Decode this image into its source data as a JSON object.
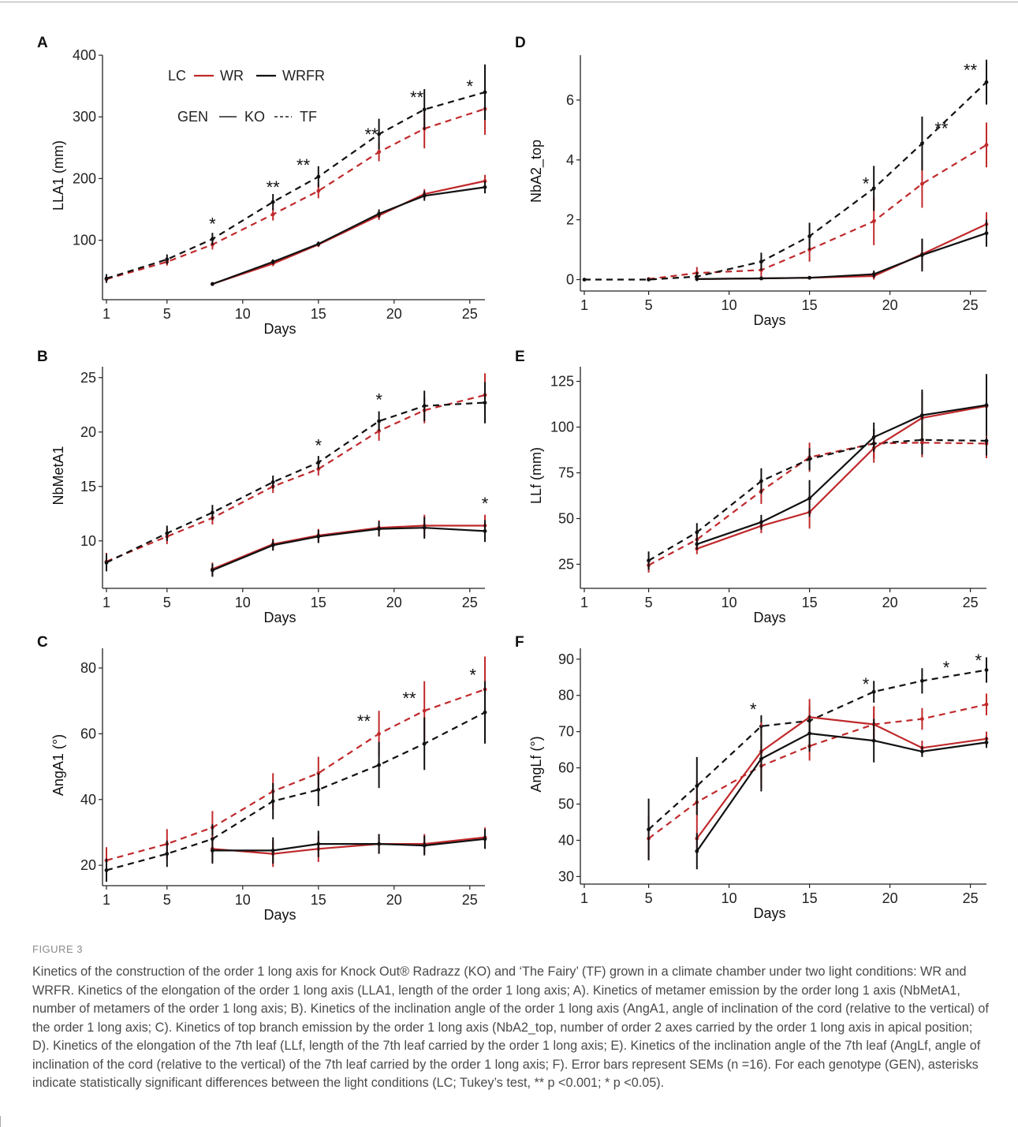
{
  "figure": {
    "label": "FIGURE 3",
    "caption": "Kinetics of the construction of the order 1 long axis for Knock Out® Radrazz (KO) and ‘The Fairy’ (TF) grown in a climate chamber under two light conditions: WR and WRFR. Kinetics of the elongation of the order 1 long axis (LLA1, length of the order 1 long axis; A). Kinetics of metamer emission by the order long 1 axis (NbMetA1, number of metamers of the order 1 long axis; B). Kinetics of the inclination angle of the order 1 long axis (AngA1, angle of inclination of the cord (relative to the vertical) of the order 1 long axis; C). Kinetics of top branch emission by the order 1 long axis (NbA2_top, number of order 2 axes carried by the order 1 long axis in apical position; D). Kinetics of the elongation of the 7th leaf (LLf, length of the 7th leaf carried by the order 1 long axis; E). Kinetics of the inclination angle of the 7th leaf (AngLf, angle of inclination of the cord (relative to the vertical) of the 7th leaf carried by the order 1 long axis; F). Error bars represent SEMs (n =16). For each genotype (GEN), asterisks indicate statistically significant differences between the light conditions (LC; Tukey’s test, ** p <0.001; * p <0.05)."
  },
  "legend": {
    "lc_title": "LC",
    "lc_items": [
      {
        "label": "WR",
        "color": "#c0292b"
      },
      {
        "label": "WRFR",
        "color": "#111111"
      }
    ],
    "gen_title": "GEN",
    "gen_items": [
      {
        "label": "KO",
        "style": "solid"
      },
      {
        "label": "TF",
        "style": "dashed"
      }
    ]
  },
  "colors": {
    "WR": "#c0292b",
    "WRFR": "#111111"
  },
  "chart_data": [
    {
      "panel": "A",
      "type": "line",
      "xlabel": "Days",
      "ylabel": "LLA1 (mm)",
      "xlim": [
        1,
        26
      ],
      "ylim": [
        10,
        400
      ],
      "xticks": [
        1,
        5,
        10,
        15,
        20,
        25
      ],
      "yticks": [
        100,
        200,
        300,
        400
      ],
      "series": [
        {
          "lc": "WR",
          "gen": "TF",
          "x": [
            1,
            5,
            8,
            12,
            15,
            19,
            22,
            26
          ],
          "y": [
            37,
            65,
            93,
            142,
            180,
            243,
            281,
            313
          ],
          "err": [
            6,
            6,
            8,
            10,
            12,
            15,
            32,
            42
          ]
        },
        {
          "lc": "WRFR",
          "gen": "TF",
          "x": [
            1,
            5,
            8,
            12,
            15,
            19,
            22,
            26
          ],
          "y": [
            38,
            69,
            102,
            162,
            203,
            272,
            312,
            340
          ],
          "err": [
            7,
            8,
            10,
            13,
            17,
            25,
            33,
            45
          ]
        },
        {
          "lc": "WR",
          "gen": "KO",
          "x": [
            8,
            12,
            15,
            19,
            22,
            26
          ],
          "y": [
            29,
            62,
            93,
            140,
            175,
            196
          ],
          "err": [
            3,
            4,
            4,
            7,
            8,
            10
          ]
        },
        {
          "lc": "WRFR",
          "gen": "KO",
          "x": [
            8,
            12,
            15,
            19,
            22,
            26
          ],
          "y": [
            29,
            65,
            94,
            143,
            172,
            186
          ],
          "err": [
            3,
            4,
            4,
            7,
            8,
            10
          ]
        }
      ],
      "annotations": [
        {
          "x": 8,
          "y": 117,
          "text": "*"
        },
        {
          "x": 12,
          "y": 176,
          "text": "**"
        },
        {
          "x": 14,
          "y": 212,
          "text": "**"
        },
        {
          "x": 18.5,
          "y": 262,
          "text": "**"
        },
        {
          "x": 21.5,
          "y": 322,
          "text": "**"
        },
        {
          "x": 25,
          "y": 340,
          "text": "*"
        }
      ]
    },
    {
      "panel": "B",
      "type": "line",
      "xlabel": "Days",
      "ylabel": "NbMetA1",
      "xlim": [
        1,
        26
      ],
      "ylim": [
        6,
        26
      ],
      "xticks": [
        1,
        5,
        10,
        15,
        20,
        25
      ],
      "yticks": [
        10,
        15,
        20,
        25
      ],
      "series": [
        {
          "lc": "WR",
          "gen": "TF",
          "x": [
            1,
            5,
            8,
            12,
            15,
            19,
            22,
            26
          ],
          "y": [
            8.1,
            10.4,
            12.1,
            15.0,
            16.6,
            20.1,
            22.0,
            23.4
          ],
          "err": [
            0.8,
            0.7,
            0.6,
            0.6,
            0.6,
            0.9,
            1.2,
            2.0
          ]
        },
        {
          "lc": "WRFR",
          "gen": "TF",
          "x": [
            1,
            5,
            8,
            12,
            15,
            19,
            22,
            26
          ],
          "y": [
            8.0,
            10.7,
            12.6,
            15.4,
            17.2,
            21.0,
            22.4,
            22.7
          ],
          "err": [
            0.8,
            0.7,
            0.7,
            0.6,
            0.6,
            0.9,
            1.4,
            1.9
          ]
        },
        {
          "lc": "WR",
          "gen": "KO",
          "x": [
            8,
            12,
            15,
            19,
            22,
            26
          ],
          "y": [
            7.4,
            9.7,
            10.5,
            11.2,
            11.4,
            11.4
          ],
          "err": [
            0.6,
            0.5,
            0.6,
            0.7,
            1.0,
            1.0
          ]
        },
        {
          "lc": "WRFR",
          "gen": "KO",
          "x": [
            8,
            12,
            15,
            19,
            22,
            26
          ],
          "y": [
            7.3,
            9.6,
            10.4,
            11.1,
            11.2,
            10.9
          ],
          "err": [
            0.6,
            0.5,
            0.6,
            0.7,
            1.0,
            1.0
          ]
        }
      ],
      "annotations": [
        {
          "x": 15,
          "y": 18.2,
          "text": "*"
        },
        {
          "x": 19,
          "y": 22.4,
          "text": "*"
        },
        {
          "x": 26,
          "y": 12.9,
          "text": "*"
        }
      ]
    },
    {
      "panel": "C",
      "type": "line",
      "xlabel": "Days",
      "ylabel": "AngA1 (°)",
      "xlim": [
        1,
        26
      ],
      "ylim": [
        15,
        86
      ],
      "xticks": [
        1,
        5,
        10,
        15,
        20,
        25
      ],
      "yticks": [
        20,
        40,
        60,
        80
      ],
      "series": [
        {
          "lc": "WR",
          "gen": "TF",
          "x": [
            1,
            5,
            8,
            12,
            15,
            19,
            22,
            26
          ],
          "y": [
            21.5,
            26.5,
            31.5,
            42.5,
            48.0,
            60.0,
            67.0,
            73.5
          ],
          "err": [
            4,
            4.5,
            5,
            5.5,
            5,
            7,
            9,
            10
          ]
        },
        {
          "lc": "WRFR",
          "gen": "TF",
          "x": [
            1,
            5,
            8,
            12,
            15,
            19,
            22,
            26
          ],
          "y": [
            18.5,
            23.5,
            28.0,
            39.5,
            43.0,
            50.5,
            57.0,
            66.5
          ],
          "err": [
            3.5,
            4,
            4.5,
            5.5,
            5,
            7,
            8,
            9.5
          ]
        },
        {
          "lc": "WR",
          "gen": "KO",
          "x": [
            8,
            12,
            15,
            19,
            22,
            26
          ],
          "y": [
            25.0,
            23.5,
            25.0,
            26.5,
            26.5,
            28.5
          ],
          "err": [
            4,
            4,
            4,
            3,
            3,
            3
          ]
        },
        {
          "lc": "WRFR",
          "gen": "KO",
          "x": [
            8,
            12,
            15,
            19,
            22,
            26
          ],
          "y": [
            24.5,
            24.5,
            26.5,
            26.5,
            26.0,
            28.0
          ],
          "err": [
            4,
            4,
            4,
            3,
            3,
            3
          ]
        }
      ],
      "annotations": [
        {
          "x": 18,
          "y": 62,
          "text": "**"
        },
        {
          "x": 21,
          "y": 69,
          "text": "**"
        },
        {
          "x": 25.2,
          "y": 76,
          "text": "*"
        }
      ]
    },
    {
      "panel": "D",
      "type": "line",
      "xlabel": "Days",
      "ylabel": "NbA2_top",
      "xlim": [
        1,
        26
      ],
      "ylim": [
        -0.25,
        7.5
      ],
      "xticks": [
        1,
        5,
        10,
        15,
        20,
        25
      ],
      "yticks": [
        0,
        2,
        4,
        6
      ],
      "series": [
        {
          "lc": "WR",
          "gen": "TF",
          "x": [
            5,
            8,
            12,
            15,
            19,
            22,
            26
          ],
          "y": [
            0.02,
            0.22,
            0.32,
            1.0,
            1.95,
            3.2,
            4.5
          ],
          "err": [
            0.05,
            0.2,
            0.3,
            0.4,
            0.8,
            0.8,
            0.75
          ]
        },
        {
          "lc": "WRFR",
          "gen": "TF",
          "x": [
            1,
            5,
            8,
            12,
            15,
            19,
            22,
            26
          ],
          "y": [
            0.0,
            0.0,
            0.1,
            0.6,
            1.45,
            3.05,
            4.55,
            6.6
          ],
          "err": [
            0,
            0,
            0.15,
            0.3,
            0.45,
            0.75,
            0.9,
            0.75
          ]
        },
        {
          "lc": "WR",
          "gen": "KO",
          "x": [
            8,
            12,
            15,
            19,
            22,
            26
          ],
          "y": [
            0.02,
            0.04,
            0.06,
            0.12,
            0.85,
            1.85
          ],
          "err": [
            0.03,
            0.04,
            0.05,
            0.12,
            0.5,
            0.4
          ]
        },
        {
          "lc": "WRFR",
          "gen": "KO",
          "x": [
            8,
            12,
            15,
            19,
            22,
            26
          ],
          "y": [
            0.02,
            0.04,
            0.06,
            0.18,
            0.82,
            1.55
          ],
          "err": [
            0.03,
            0.04,
            0.05,
            0.12,
            0.55,
            0.45
          ]
        }
      ],
      "annotations": [
        {
          "x": 18.5,
          "y": 3.0,
          "text": "*"
        },
        {
          "x": 23.2,
          "y": 4.85,
          "text": "**"
        },
        {
          "x": 25.0,
          "y": 6.8,
          "text": "**"
        }
      ]
    },
    {
      "panel": "E",
      "type": "line",
      "xlabel": "Days",
      "ylabel": "LLf (mm)",
      "xlim": [
        1,
        26
      ],
      "ylim": [
        14,
        133
      ],
      "xticks": [
        1,
        5,
        10,
        15,
        20,
        25
      ],
      "yticks": [
        25,
        50,
        75,
        100,
        125
      ],
      "series": [
        {
          "lc": "WR",
          "gen": "TF",
          "x": [
            5,
            8,
            12,
            15,
            19,
            22,
            26
          ],
          "y": [
            24.5,
            38.5,
            65.0,
            83.5,
            91.0,
            91.5,
            91.0
          ],
          "err": [
            4,
            5,
            7,
            8,
            8,
            8,
            8
          ]
        },
        {
          "lc": "WRFR",
          "gen": "TF",
          "x": [
            5,
            8,
            12,
            15,
            19,
            22,
            26
          ],
          "y": [
            27.0,
            42.5,
            70.5,
            82.5,
            91.0,
            93.0,
            92.5
          ],
          "err": [
            5,
            5,
            7,
            6,
            8,
            8,
            8
          ]
        },
        {
          "lc": "WR",
          "gen": "KO",
          "x": [
            8,
            12,
            15,
            19,
            22,
            26
          ],
          "y": [
            33.5,
            46.0,
            53.5,
            88.5,
            105.0,
            111.5
          ],
          "err": [
            3,
            4,
            9,
            8,
            14,
            17
          ]
        },
        {
          "lc": "WRFR",
          "gen": "KO",
          "x": [
            8,
            12,
            15,
            19,
            22,
            26
          ],
          "y": [
            36.0,
            48.0,
            61.0,
            94.5,
            106.5,
            112.0
          ],
          "err": [
            3,
            4,
            10,
            8,
            14,
            17
          ]
        }
      ],
      "annotations": []
    },
    {
      "panel": "F",
      "type": "line",
      "xlabel": "Days",
      "ylabel": "AngLf (°)",
      "xlim": [
        1,
        26
      ],
      "ylim": [
        29,
        93
      ],
      "xticks": [
        1,
        5,
        10,
        15,
        20,
        25
      ],
      "yticks": [
        30,
        40,
        50,
        60,
        70,
        80,
        90
      ],
      "series": [
        {
          "lc": "WR",
          "gen": "TF",
          "x": [
            5,
            8,
            12,
            15,
            19,
            22,
            26
          ],
          "y": [
            40.5,
            50.5,
            60.5,
            66.0,
            72.0,
            73.5,
            77.5
          ],
          "err": [
            6,
            6,
            6,
            4,
            5,
            3,
            3
          ]
        },
        {
          "lc": "WRFR",
          "gen": "TF",
          "x": [
            5,
            8,
            12,
            15,
            19,
            22,
            26
          ],
          "y": [
            43.0,
            55.0,
            71.5,
            73.0,
            81.0,
            84.0,
            87.0
          ],
          "err": [
            8.5,
            8,
            3,
            4,
            3,
            3.5,
            3.5
          ]
        },
        {
          "lc": "WR",
          "gen": "KO",
          "x": [
            8,
            12,
            15,
            19,
            22,
            26
          ],
          "y": [
            40.5,
            64.5,
            74.0,
            72.0,
            65.5,
            68.0
          ],
          "err": [
            4,
            8,
            5,
            5,
            2,
            2
          ]
        },
        {
          "lc": "WRFR",
          "gen": "KO",
          "x": [
            8,
            12,
            15,
            19,
            22,
            26
          ],
          "y": [
            37.0,
            62.5,
            69.5,
            67.5,
            64.5,
            67.0
          ],
          "err": [
            5,
            9,
            5,
            6,
            1.5,
            1.5
          ]
        }
      ],
      "annotations": [
        {
          "x": 11.5,
          "y": 74.5,
          "text": "*"
        },
        {
          "x": 18.5,
          "y": 81.5,
          "text": "*"
        },
        {
          "x": 23.5,
          "y": 86.0,
          "text": "*"
        },
        {
          "x": 25.5,
          "y": 88.0,
          "text": "*"
        }
      ]
    }
  ]
}
